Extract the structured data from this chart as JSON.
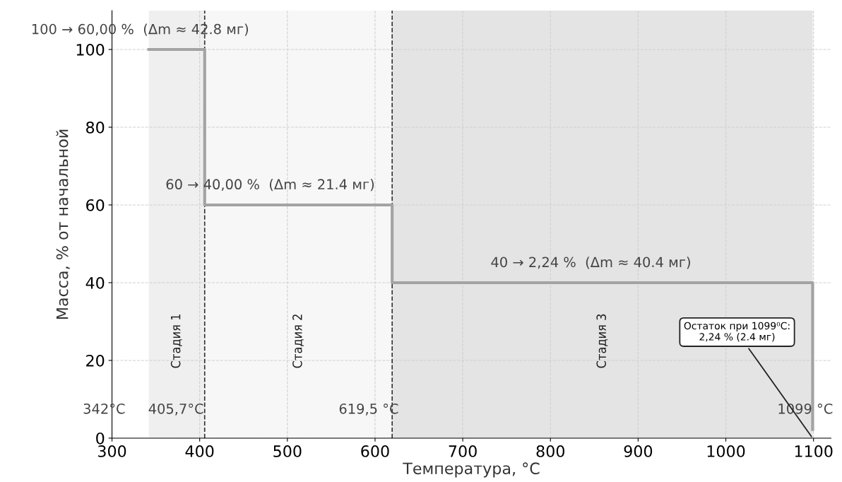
{
  "chart_data": {
    "type": "step",
    "xlabel": "Температура, °C",
    "ylabel": "Масса, % от начальной",
    "x": [
      342,
      405.7,
      619.5,
      1099
    ],
    "series": [
      {
        "color": "#a3a3a3",
        "values": [
          100,
          60,
          40,
          2.24
        ]
      }
    ],
    "xlim": [
      300,
      1120
    ],
    "xticks": [
      300,
      400,
      500,
      600,
      700,
      800,
      900,
      1000,
      1100
    ],
    "ylim": [
      0,
      110
    ],
    "yticks": [
      0,
      20,
      40,
      60,
      80,
      100
    ],
    "grid": true,
    "line_style": "solid",
    "marker": "none",
    "bands": [
      {
        "axis": "x",
        "from": 342,
        "to": 405.7,
        "label": "Стадия 1",
        "color": "#efefef"
      },
      {
        "axis": "x",
        "from": 405.7,
        "to": 619.5,
        "label": "Стадия 2",
        "color": "#f7f7f7"
      },
      {
        "axis": "x",
        "from": 619.5,
        "to": 1099,
        "label": "Стадия 3",
        "color": "#e4e4e4"
      }
    ],
    "ref_lines": [
      {
        "axis": "x",
        "value": 405.7,
        "line_style": "dashed",
        "color": "#333333"
      },
      {
        "axis": "x",
        "value": 619.5,
        "line_style": "dashed",
        "color": "#333333"
      }
    ],
    "annotations": [
      "100 → 60,00 %  (Δm ≈ 42.8 мг)",
      "60 → 40,00 %  (Δm ≈ 21.4 мг)",
      "40 → 2,24 %  (Δm ≈ 40.4 мг)",
      "342°C",
      "405,7°C",
      "619,5 °C",
      "1099 °C",
      {
        "text": "Остаток при 1099⁰C:\n2,24 % (2.4 мг)",
        "x": 1099,
        "y": 0
      }
    ]
  }
}
